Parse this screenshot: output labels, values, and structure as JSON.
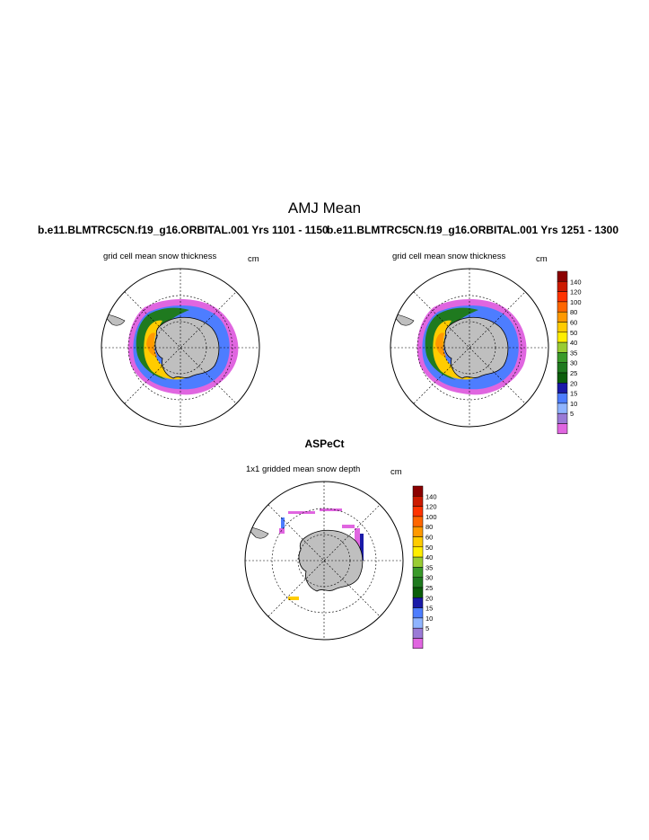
{
  "figure": {
    "title": "AMJ Mean",
    "left_run_label": "b.e11.BLMTRC5CN.f19_g16.ORBITAL.001  Yrs 1101 - 1150",
    "right_run_label": "b.e11.BLMTRC5CN.f19_g16.ORBITAL.001  Yrs 1251 - 1300",
    "obs_title": "ASPeCt"
  },
  "panels": [
    {
      "id": "model-left",
      "title": "grid cell mean snow thickness",
      "units": "cm"
    },
    {
      "id": "model-right",
      "title": "grid cell mean snow thickness",
      "units": "cm"
    },
    {
      "id": "obs",
      "title": "1x1 gridded mean snow depth",
      "units": "cm"
    }
  ],
  "colorbar": {
    "levels": [
      "140",
      "120",
      "100",
      "80",
      "60",
      "50",
      "40",
      "35",
      "30",
      "25",
      "20",
      "15",
      "10",
      "5"
    ],
    "colors": [
      "#8b0000",
      "#cc1a00",
      "#ff3300",
      "#ff6600",
      "#ff9900",
      "#ffcc00",
      "#ffee00",
      "#99cc33",
      "#3a9a2a",
      "#1f7a1f",
      "#0b5e0b",
      "#1a1aa8",
      "#4d7dff",
      "#8fb4ff",
      "#9a7ad6",
      "#e066e0"
    ]
  },
  "colors": {
    "land": "#bfbfbf",
    "low_snow": "#e066e0",
    "mid_snow": "#4d7dff",
    "high_snow": "#ffcc00"
  }
}
